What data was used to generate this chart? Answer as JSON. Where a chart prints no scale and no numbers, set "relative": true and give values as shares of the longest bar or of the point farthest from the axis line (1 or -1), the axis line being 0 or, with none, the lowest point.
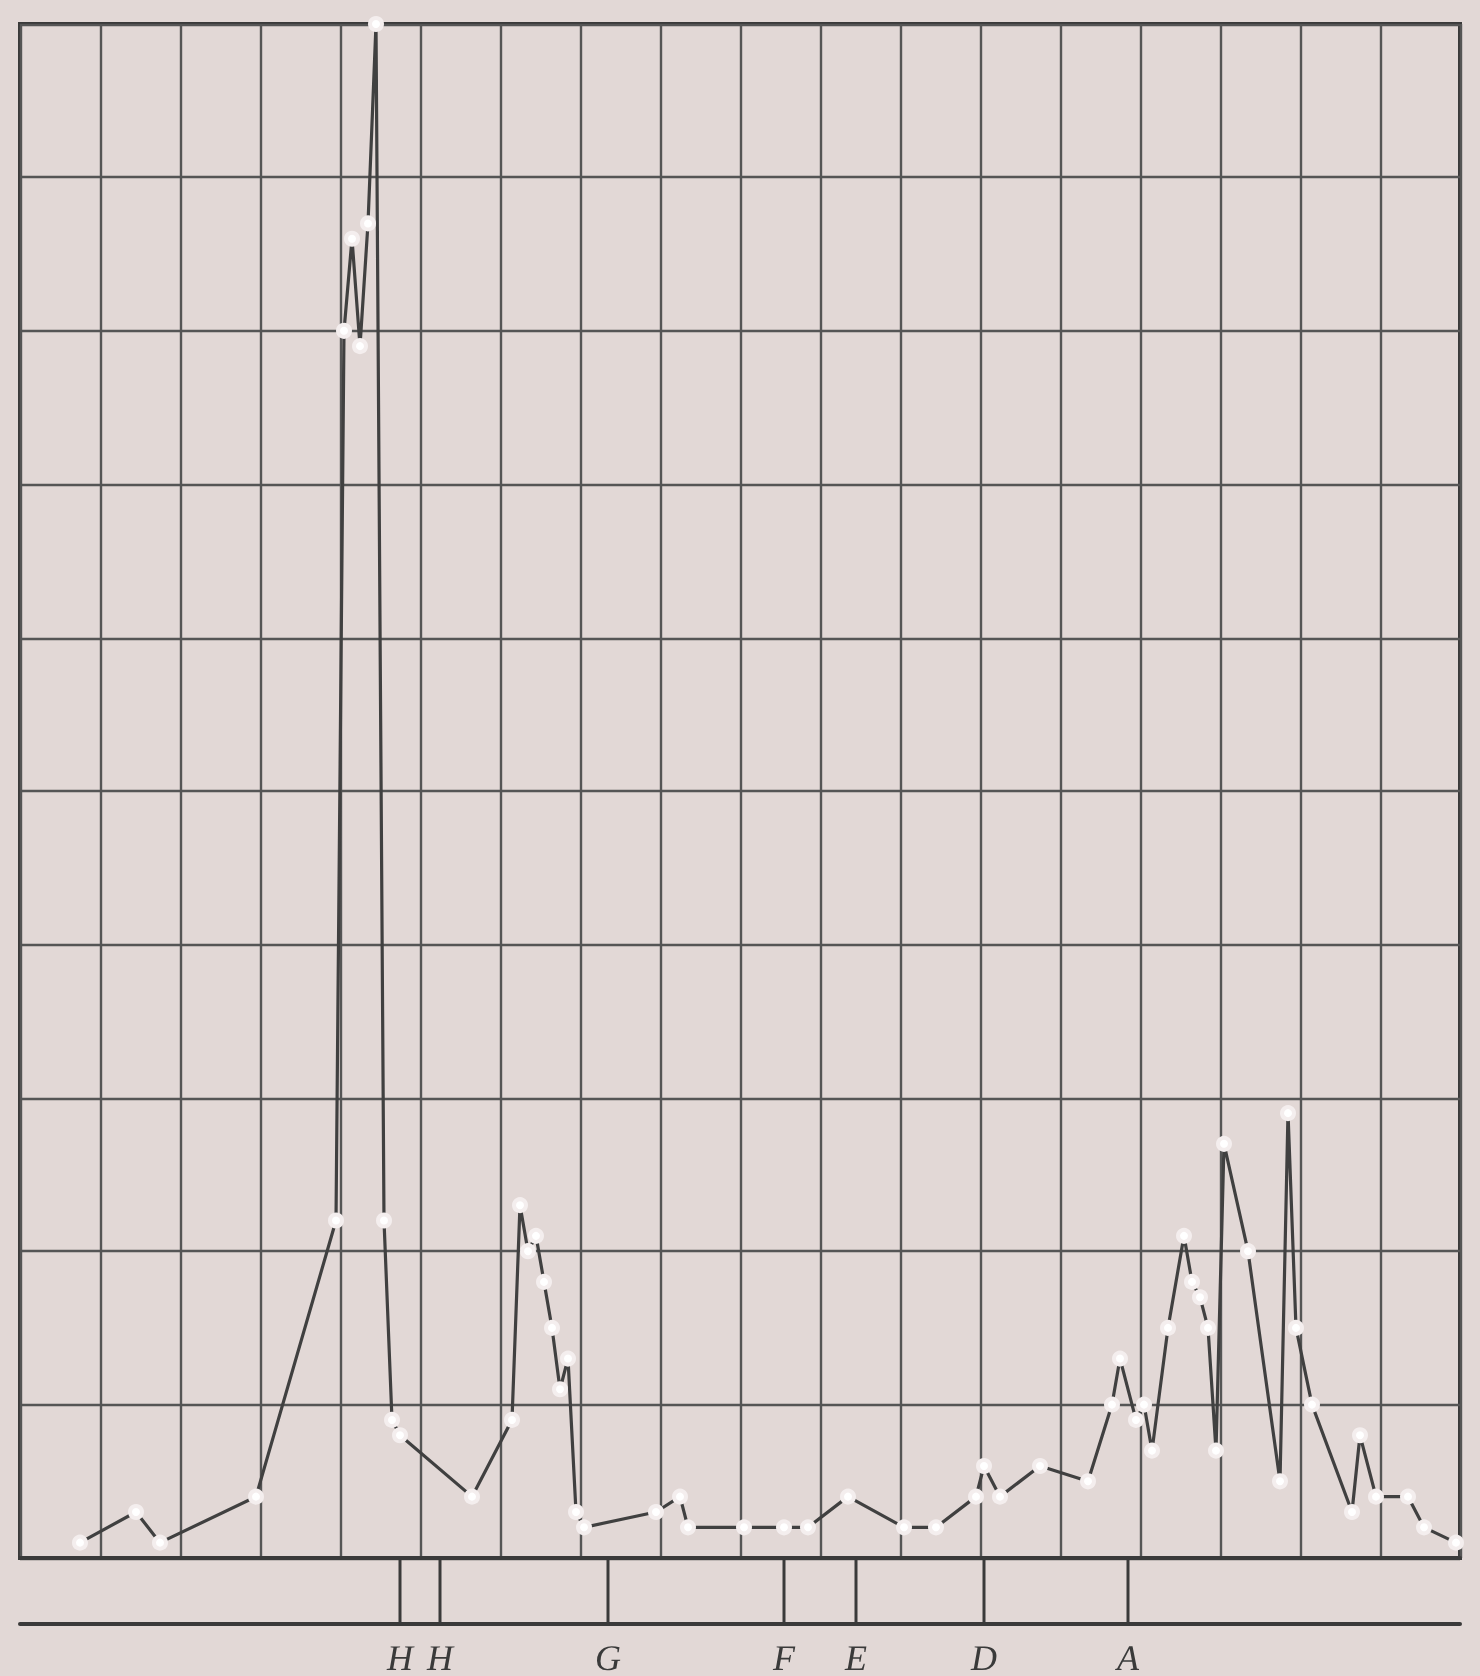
{
  "chart_data": {
    "type": "line",
    "relative": true,
    "categories": [
      null,
      null,
      null,
      null,
      null,
      null,
      null,
      null,
      null,
      null,
      null,
      null,
      null,
      null,
      null,
      null,
      null,
      null,
      null,
      null,
      null,
      null,
      null,
      null,
      null,
      null,
      null,
      null,
      null,
      null,
      null,
      null,
      null,
      null,
      null,
      null,
      null,
      null,
      null,
      null,
      null,
      null,
      null,
      null,
      null,
      null,
      null,
      "H",
      null,
      null,
      null,
      null,
      "H",
      null,
      null,
      null,
      null,
      null,
      null,
      null,
      null,
      null,
      null,
      null,
      null,
      null,
      null,
      null,
      null,
      null,
      null,
      null,
      null,
      "G",
      null,
      null,
      null,
      null,
      null,
      null,
      null,
      null,
      null,
      null,
      null,
      null,
      null,
      null,
      null,
      null,
      null,
      null,
      null,
      null,
      null,
      "F",
      null,
      null,
      null,
      null,
      null,
      null,
      null,
      null,
      "E",
      null,
      null,
      null,
      null,
      null,
      null,
      null,
      null,
      null,
      null,
      null,
      null,
      null,
      null,
      null,
      "D",
      null,
      null,
      null,
      null,
      null,
      null,
      null,
      null,
      null,
      null,
      null,
      null,
      null,
      null,
      null,
      null,
      null,
      "A",
      null,
      null,
      null,
      null,
      null,
      null,
      null,
      null,
      null,
      null,
      null,
      null,
      null,
      null,
      null,
      null,
      null,
      null,
      null,
      null,
      null,
      null,
      null,
      null,
      null,
      null,
      null,
      null,
      null,
      null,
      null,
      null,
      null,
      null,
      null,
      null,
      null,
      null,
      null,
      null,
      null
    ],
    "grid": true,
    "marker": "circle",
    "line_style": "solid",
    "series": [
      {
        "color": "#404040",
        "values": [
          null,
          null,
          null,
          null,
          null,
          null,
          null,
          0.01,
          null,
          null,
          null,
          null,
          null,
          null,
          0.03,
          null,
          null,
          0.01,
          null,
          null,
          null,
          null,
          null,
          null,
          null,
          null,
          null,
          null,
          null,
          0.04,
          null,
          null,
          null,
          null,
          null,
          null,
          null,
          null,
          null,
          0.22,
          0.8,
          0.86,
          0.79,
          0.87,
          1,
          0.22,
          0.09,
          0.08,
          null,
          null,
          null,
          null,
          null,
          null,
          null,
          null,
          0.04,
          null,
          null,
          null,
          null,
          0.09,
          0.23,
          0.2,
          0.21,
          0.18,
          0.15,
          0.11,
          0.13,
          0.03,
          0.02,
          null,
          null,
          null,
          null,
          null,
          null,
          null,
          null,
          0.03,
          null,
          null,
          0.04,
          0.02,
          null,
          null,
          null,
          null,
          null,
          null,
          0.02,
          null,
          null,
          null,
          null,
          0.02,
          null,
          null,
          0.02,
          null,
          null,
          null,
          null,
          0.04,
          null,
          null,
          null,
          null,
          null,
          null,
          0.02,
          null,
          null,
          null,
          0.02,
          null,
          null,
          null,
          null,
          0.04,
          0.06,
          null,
          0.04,
          null,
          null,
          null,
          null,
          0.06,
          null,
          null,
          null,
          null,
          null,
          0.05,
          null,
          null,
          0.1,
          0.13,
          null,
          0.09,
          0.1,
          0.07,
          null,
          0.15,
          null,
          0.21,
          0.18,
          0.17,
          0.15,
          0.07,
          0.27,
          null,
          null,
          0.2,
          null,
          null,
          null,
          0.05,
          0.29,
          0.15,
          null,
          0.1,
          null,
          null,
          null,
          null,
          0.03,
          0.08,
          null,
          0.04,
          null,
          null,
          null,
          0.04,
          null,
          0.02,
          null,
          null,
          null,
          0.01
        ]
      }
    ]
  }
}
